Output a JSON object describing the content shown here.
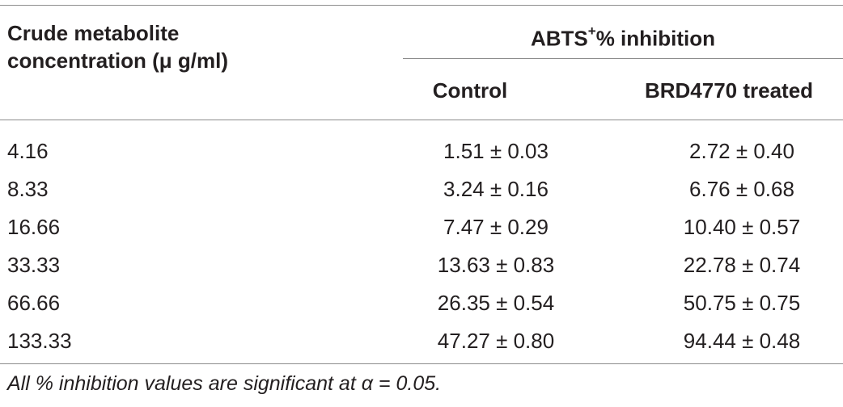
{
  "table": {
    "header": {
      "col0_line1": "Crude metabolite",
      "col0_line2": "concentration (μ g/ml)",
      "group_prefix": "ABTS",
      "group_sup": "+",
      "group_suffix": "% inhibition",
      "col1": "Control",
      "col2": "BRD4770 treated"
    },
    "rows": [
      {
        "concentration": "4.16",
        "control": "1.51 ± 0.03",
        "treated": "2.72 ± 0.40"
      },
      {
        "concentration": "8.33",
        "control": "3.24 ± 0.16",
        "treated": "6.76 ± 0.68"
      },
      {
        "concentration": "16.66",
        "control": "7.47 ± 0.29",
        "treated": "10.40 ± 0.57"
      },
      {
        "concentration": "33.33",
        "control": "13.63 ± 0.83",
        "treated": "22.78 ± 0.74"
      },
      {
        "concentration": "66.66",
        "control": "26.35 ± 0.54",
        "treated": "50.75 ± 0.75"
      },
      {
        "concentration": "133.33",
        "control": "47.27 ± 0.80",
        "treated": "94.44 ± 0.48"
      }
    ],
    "footnote": "All % inhibition values are significant at α = 0.05."
  }
}
